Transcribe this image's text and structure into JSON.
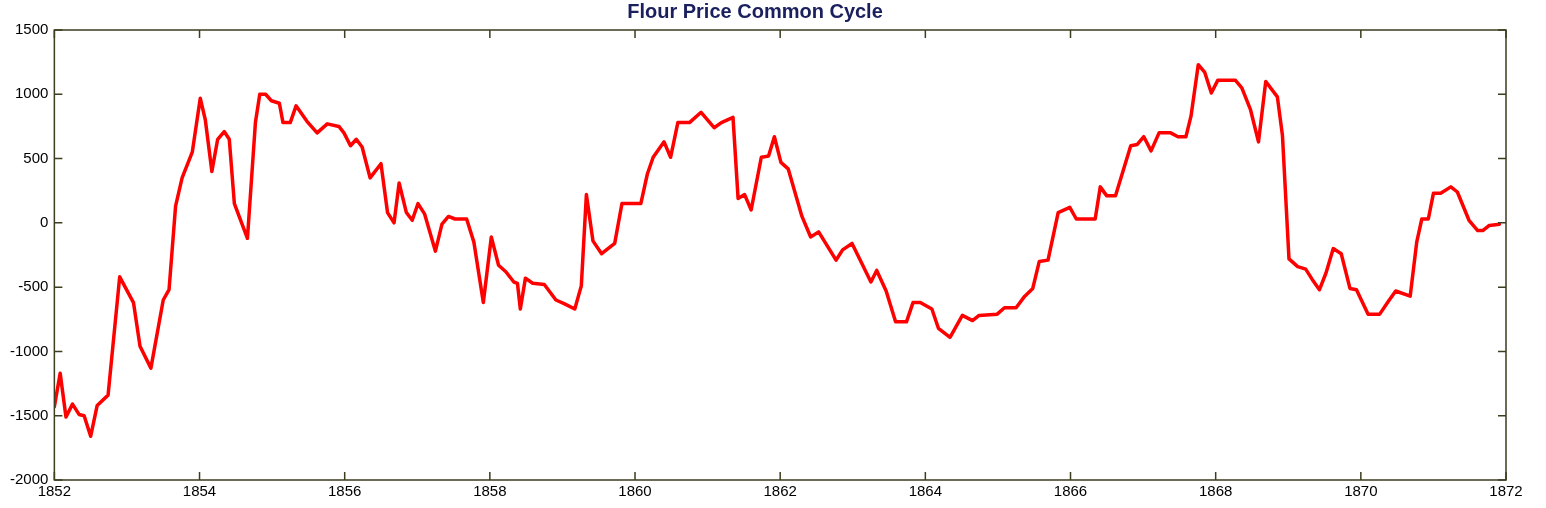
{
  "chart_data": {
    "type": "line",
    "title": "Flour Price Common Cycle",
    "xlim": [
      1852,
      1872
    ],
    "xticks": [
      1852,
      1854,
      1856,
      1858,
      1860,
      1862,
      1864,
      1866,
      1868,
      1870,
      1872
    ],
    "ylim": [
      -2000,
      1500
    ],
    "yticks": [
      -2000,
      -1500,
      -1000,
      -500,
      0,
      500,
      1000,
      1500
    ],
    "grid": false,
    "legend": false,
    "marker": "none",
    "line_style": "solid",
    "series": [
      {
        "color": "#ff0000",
        "x": [
          1852.0,
          1852.08,
          1852.16,
          1852.25,
          1852.34,
          1852.41,
          1852.5,
          1852.59,
          1852.74,
          1852.9,
          1853.09,
          1853.18,
          1853.33,
          1853.5,
          1853.58,
          1853.67,
          1853.76,
          1853.9,
          1854.01,
          1854.08,
          1854.17,
          1854.25,
          1854.34,
          1854.41,
          1854.48,
          1854.66,
          1854.77,
          1854.83,
          1854.91,
          1854.99,
          1855.1,
          1855.15,
          1855.25,
          1855.33,
          1855.48,
          1855.62,
          1855.76,
          1855.92,
          1855.99,
          1856.08,
          1856.16,
          1856.24,
          1856.35,
          1856.5,
          1856.59,
          1856.68,
          1856.75,
          1856.85,
          1856.93,
          1857.01,
          1857.1,
          1857.25,
          1857.34,
          1857.43,
          1857.52,
          1857.68,
          1857.78,
          1857.91,
          1858.02,
          1858.12,
          1858.22,
          1858.33,
          1858.38,
          1858.42,
          1858.49,
          1858.59,
          1858.75,
          1858.91,
          1859.03,
          1859.17,
          1859.26,
          1859.33,
          1859.42,
          1859.54,
          1859.72,
          1859.82,
          1860.08,
          1860.17,
          1860.25,
          1860.4,
          1860.49,
          1860.59,
          1860.75,
          1860.91,
          1861.09,
          1861.19,
          1861.35,
          1861.42,
          1861.51,
          1861.6,
          1861.74,
          1861.84,
          1861.92,
          1862.01,
          1862.11,
          1862.3,
          1862.42,
          1862.53,
          1862.77,
          1862.86,
          1862.99,
          1863.25,
          1863.33,
          1863.46,
          1863.59,
          1863.74,
          1863.83,
          1863.93,
          1864.09,
          1864.18,
          1864.34,
          1864.51,
          1864.65,
          1864.74,
          1864.99,
          1865.09,
          1865.25,
          1865.37,
          1865.48,
          1865.57,
          1865.69,
          1865.83,
          1865.99,
          1866.08,
          1866.34,
          1866.41,
          1866.5,
          1866.62,
          1866.83,
          1866.92,
          1867.01,
          1867.11,
          1867.22,
          1867.38,
          1867.48,
          1867.59,
          1867.66,
          1867.76,
          1867.85,
          1867.94,
          1868.03,
          1868.27,
          1868.36,
          1868.48,
          1868.59,
          1868.69,
          1868.85,
          1868.92,
          1869.01,
          1869.13,
          1869.24,
          1869.33,
          1869.43,
          1869.52,
          1869.62,
          1869.73,
          1869.85,
          1869.94,
          1870.1,
          1870.26,
          1870.38,
          1870.48,
          1870.68,
          1870.77,
          1870.84,
          1870.93,
          1871.0,
          1871.1,
          1871.24,
          1871.33,
          1871.49,
          1871.61,
          1871.68,
          1871.77,
          1871.91
        ],
        "values": [
          -1430,
          -1170,
          -1510,
          -1410,
          -1490,
          -1500,
          -1660,
          -1420,
          -1340,
          -420,
          -620,
          -960,
          -1130,
          -600,
          -520,
          130,
          350,
          550,
          970,
          800,
          400,
          650,
          710,
          650,
          150,
          -120,
          780,
          1000,
          1000,
          950,
          930,
          780,
          780,
          910,
          790,
          700,
          770,
          750,
          700,
          600,
          650,
          590,
          350,
          460,
          80,
          0,
          310,
          80,
          20,
          150,
          70,
          -220,
          -10,
          50,
          30,
          30,
          -150,
          -620,
          -110,
          -330,
          -380,
          -460,
          -470,
          -670,
          -430,
          -470,
          -480,
          -600,
          -630,
          -670,
          -490,
          220,
          -140,
          -240,
          -160,
          150,
          150,
          380,
          510,
          630,
          510,
          780,
          780,
          860,
          740,
          780,
          820,
          190,
          220,
          100,
          510,
          520,
          670,
          470,
          420,
          50,
          -110,
          -70,
          -290,
          -210,
          -160,
          -460,
          -370,
          -530,
          -770,
          -770,
          -620,
          -620,
          -670,
          -820,
          -890,
          -720,
          -760,
          -720,
          -710,
          -660,
          -660,
          -570,
          -510,
          -300,
          -290,
          80,
          120,
          30,
          30,
          280,
          210,
          210,
          600,
          610,
          670,
          560,
          700,
          700,
          670,
          670,
          830,
          1230,
          1170,
          1010,
          1110,
          1110,
          1050,
          880,
          630,
          1100,
          980,
          680,
          -280,
          -340,
          -360,
          -440,
          -520,
          -390,
          -200,
          -240,
          -510,
          -520,
          -710,
          -710,
          -610,
          -530,
          -570,
          -150,
          30,
          30,
          230,
          230,
          280,
          240,
          20,
          -60,
          -60,
          -20,
          -10
        ]
      }
    ]
  }
}
